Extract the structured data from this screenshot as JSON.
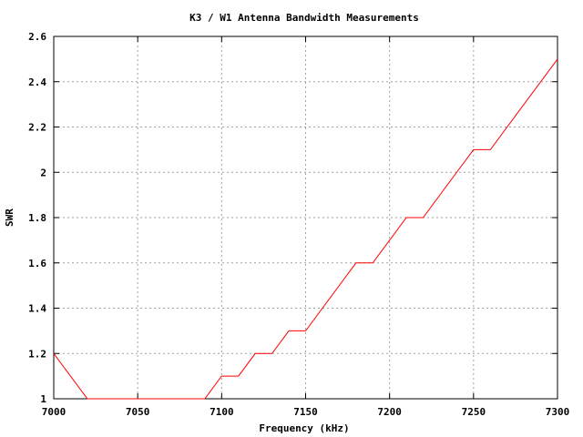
{
  "chart_data": {
    "type": "line",
    "title": "K3 / W1 Antenna Bandwidth Measurements",
    "xlabel": "Frequency (kHz)",
    "ylabel": "SWR",
    "xlim": [
      7000,
      7300
    ],
    "ylim": [
      1,
      2.6
    ],
    "x_ticks": [
      7000,
      7050,
      7100,
      7150,
      7200,
      7250,
      7300
    ],
    "x_tick_labels": [
      "7000",
      "7050",
      "7100",
      "7150",
      "7200",
      "7250",
      "7300"
    ],
    "y_ticks": [
      1,
      1.2,
      1.4,
      1.6,
      1.8,
      2,
      2.2,
      2.4,
      2.6
    ],
    "y_tick_labels": [
      "1",
      "1.2",
      "1.4",
      "1.6",
      "1.8",
      "2",
      "2.2",
      "2.4",
      "2.6"
    ],
    "grid": true,
    "series": [
      {
        "color": "#ff0000",
        "x": [
          7000,
          7020,
          7090,
          7100,
          7110,
          7120,
          7130,
          7140,
          7150,
          7180,
          7190,
          7210,
          7220,
          7250,
          7260,
          7300
        ],
        "y": [
          1.2,
          1.0,
          1.0,
          1.1,
          1.1,
          1.2,
          1.2,
          1.3,
          1.3,
          1.6,
          1.6,
          1.8,
          1.8,
          2.1,
          2.1,
          2.5
        ]
      }
    ]
  }
}
